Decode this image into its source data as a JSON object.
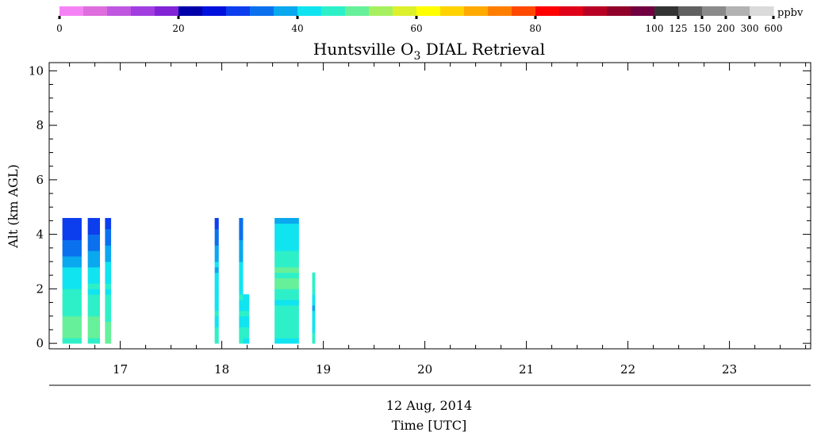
{
  "chart_data": {
    "type": "heatmap",
    "title": "Huntsville O3 DIAL Retrieval",
    "title_parts": {
      "main": "Huntsville O",
      "sub": "3",
      "tail": " DIAL Retrieval"
    },
    "ylabel": "Alt (km AGL)",
    "xlabel": "Time [UTC]",
    "date_label": "12 Aug, 2014",
    "colorbar_unit": "ppbv",
    "xlim": [
      16.3,
      23.8
    ],
    "ylim": [
      -0.2,
      10.3
    ],
    "x_ticks": [
      17,
      18,
      19,
      20,
      21,
      22,
      23
    ],
    "x_tick_labels": [
      "17",
      "18",
      "19",
      "20",
      "21",
      "22",
      "23"
    ],
    "y_ticks": [
      0,
      2,
      4,
      6,
      8,
      10
    ],
    "y_tick_labels": [
      "0",
      "2",
      "4",
      "6",
      "8",
      "10"
    ],
    "colorbar": {
      "colors": [
        "#f683f6",
        "#de6ede",
        "#c057e0",
        "#a23ee0",
        "#8224d6",
        "#0000aa",
        "#0010dd",
        "#0c3eee",
        "#0b70ee",
        "#0aa8ee",
        "#10e4f0",
        "#2ef0c8",
        "#66f09a",
        "#a6f060",
        "#dcf02c",
        "#ffff00",
        "#ffd200",
        "#ffaa00",
        "#ff7e00",
        "#ff4800",
        "#ff0000",
        "#e00018",
        "#b80024",
        "#900028",
        "#700040",
        "#333333",
        "#606060",
        "#8a8a8a",
        "#b2b2b2",
        "#dadada"
      ],
      "tick_labels": [
        "0",
        "20",
        "40",
        "60",
        "80",
        "100",
        "125",
        "150",
        "200",
        "300",
        "600"
      ],
      "tick_index": [
        0,
        5,
        10,
        15,
        20,
        25,
        26,
        27,
        28,
        29,
        30
      ]
    },
    "profiles": [
      {
        "t0": 16.43,
        "t1": 16.62,
        "top": 4.6,
        "values": [
          46,
          48,
          51,
          50,
          49,
          47,
          46,
          45,
          44,
          44,
          43,
          42,
          41,
          40,
          38,
          37,
          35,
          34,
          32,
          31,
          30,
          29,
          28
        ]
      },
      {
        "t0": 16.68,
        "t1": 16.8,
        "top": 4.6,
        "values": [
          47,
          49,
          50,
          49,
          48,
          46,
          45,
          46,
          44,
          43,
          44,
          42,
          41,
          40,
          39,
          38,
          36,
          35,
          33,
          32,
          31,
          30,
          30
        ]
      },
      {
        "t0": 16.85,
        "t1": 16.91,
        "top": 4.6,
        "values": [
          48,
          49,
          49,
          48,
          46,
          45,
          44,
          46,
          45,
          43,
          45,
          42,
          42,
          40,
          40,
          39,
          37,
          36,
          34,
          33,
          32,
          31,
          31
        ]
      },
      {
        "t0": 17.93,
        "t1": 17.97,
        "top": 4.6,
        "values": [
          44,
          46,
          45,
          43,
          42,
          44,
          41,
          43,
          42,
          41,
          40,
          41,
          40,
          39,
          40,
          38,
          37,
          36,
          35,
          33,
          32,
          31,
          30
        ]
      },
      {
        "t0": 18.17,
        "t1": 18.21,
        "top": 4.6,
        "values": [
          44,
          45,
          44,
          43,
          42,
          45,
          42,
          43,
          44,
          43,
          42,
          42,
          41,
          41,
          40,
          39,
          38,
          37,
          36,
          35,
          34,
          33,
          32
        ]
      },
      {
        "t0": 18.21,
        "t1": 18.27,
        "top": 1.8,
        "values": [
          43,
          45,
          44,
          42,
          43,
          44,
          43,
          42,
          41
        ]
      },
      {
        "t0": 18.52,
        "t1": 18.76,
        "top": 4.6,
        "values": [
          43,
          46,
          45,
          44,
          45,
          46,
          44,
          43,
          45,
          47,
          49,
          50,
          47,
          48,
          46,
          45,
          44,
          42,
          41,
          40,
          41,
          40,
          39
        ]
      },
      {
        "t0": 18.89,
        "t1": 18.92,
        "top": 2.6,
        "values": [
          44,
          46,
          42,
          40,
          43,
          41,
          39,
          42,
          43,
          44,
          45,
          46,
          45
        ]
      }
    ]
  }
}
